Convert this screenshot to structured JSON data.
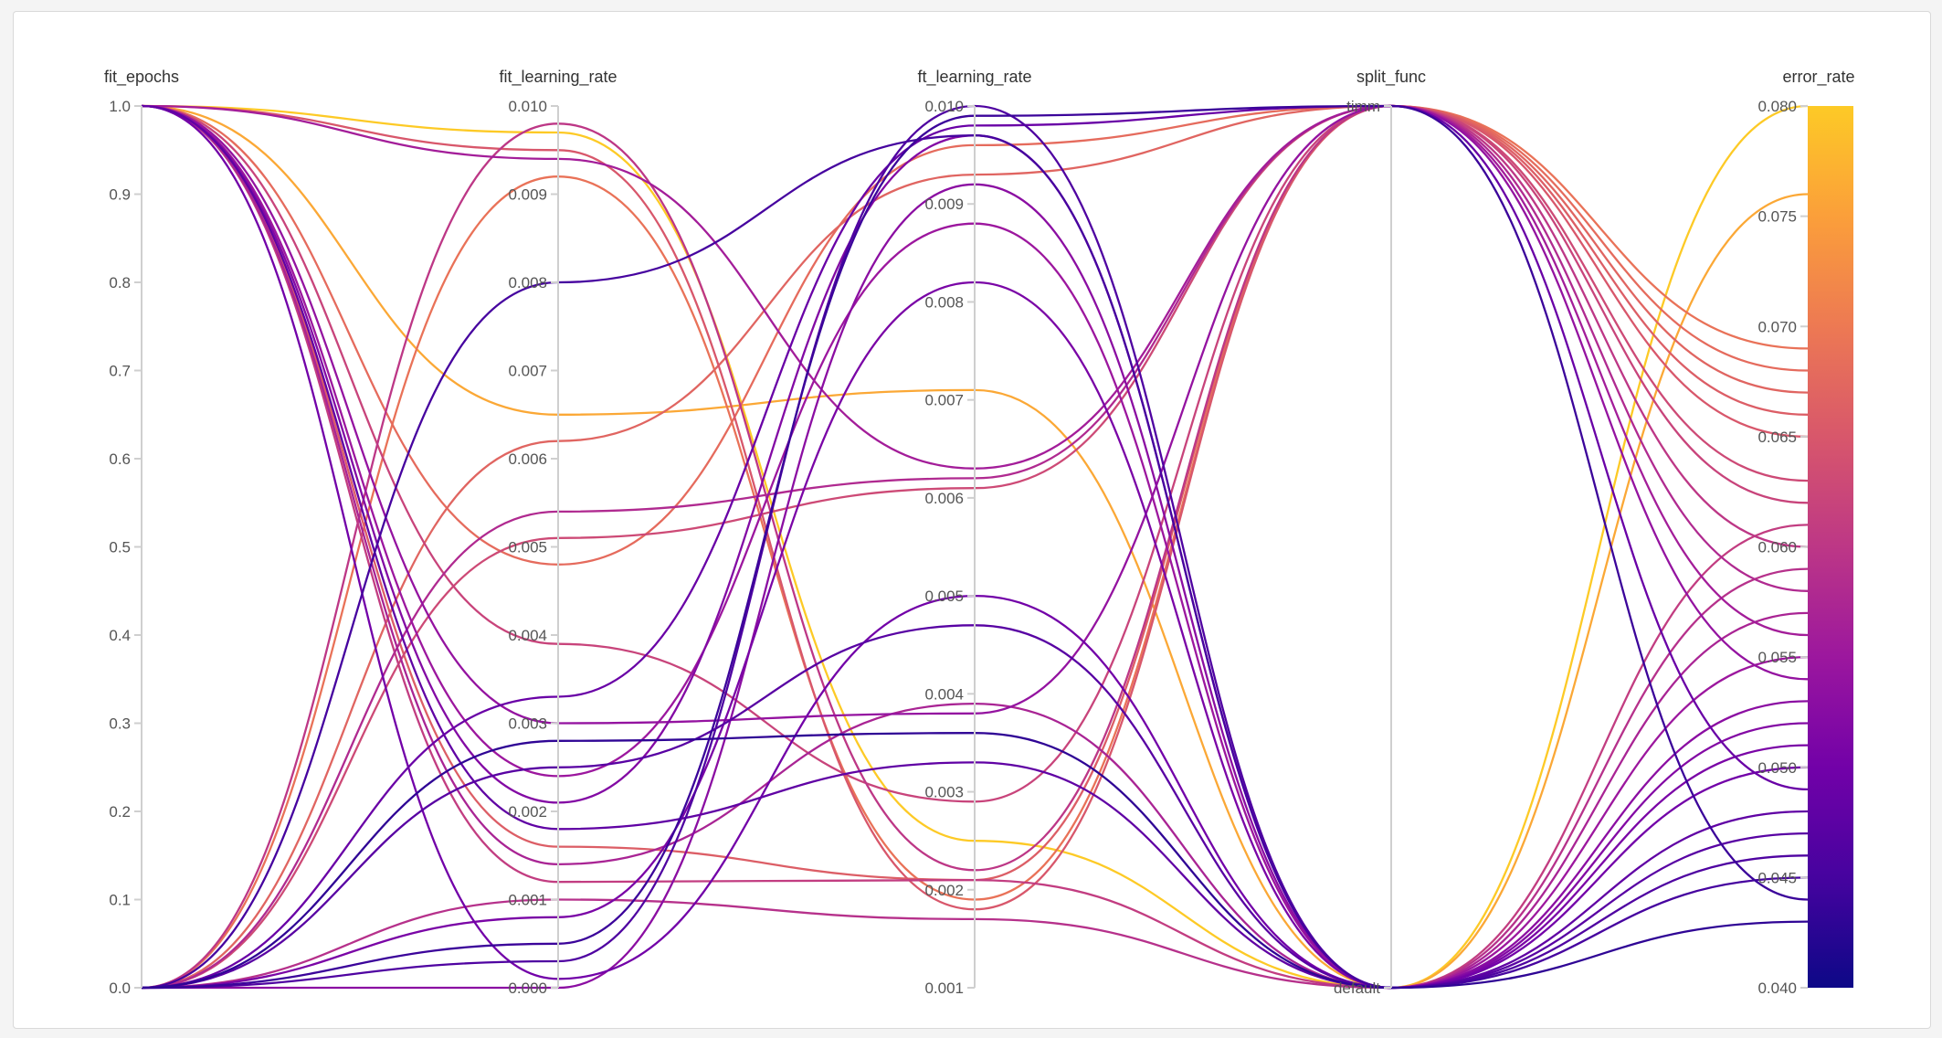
{
  "chart_data": {
    "type": "parallel-coordinates",
    "dimensions": [
      {
        "name": "fit_epochs",
        "kind": "numeric",
        "range": [
          0,
          1
        ],
        "ticks": [
          "0.0",
          "0.1",
          "0.2",
          "0.3",
          "0.4",
          "0.5",
          "0.6",
          "0.7",
          "0.8",
          "0.9",
          "1.0"
        ]
      },
      {
        "name": "fit_learning_rate",
        "kind": "numeric",
        "range": [
          0,
          0.01
        ],
        "ticks": [
          "0.000",
          "0.001",
          "0.002",
          "0.003",
          "0.004",
          "0.005",
          "0.006",
          "0.007",
          "0.008",
          "0.009",
          "0.010"
        ]
      },
      {
        "name": "ft_learning_rate",
        "kind": "numeric",
        "range": [
          0.001,
          0.01
        ],
        "ticks": [
          "0.001",
          "0.002",
          "0.003",
          "0.004",
          "0.005",
          "0.006",
          "0.007",
          "0.008",
          "0.009",
          "0.010"
        ]
      },
      {
        "name": "split_func",
        "kind": "categorical",
        "categories": [
          "default",
          "timm"
        ]
      },
      {
        "name": "error_rate",
        "kind": "numeric",
        "range": [
          0.04,
          0.08
        ],
        "ticks": [
          "0.040",
          "0.045",
          "0.050",
          "0.055",
          "0.060",
          "0.065",
          "0.070",
          "0.075",
          "0.080"
        ]
      }
    ],
    "colorscale": {
      "dimension": "error_rate",
      "range": [
        0.04,
        0.08
      ],
      "stops": [
        "#0d0887",
        "#46039f",
        "#7201a8",
        "#9c179e",
        "#bd3786",
        "#d8576b",
        "#ed7953",
        "#fb9f3a",
        "#fdca26"
      ]
    },
    "runs": [
      {
        "fit_epochs": 1,
        "fit_learning_rate": 0.0097,
        "ft_learning_rate": 0.0025,
        "split_func": "default",
        "error_rate": 0.08
      },
      {
        "fit_epochs": 1,
        "fit_learning_rate": 0.0065,
        "ft_learning_rate": 0.0071,
        "split_func": "default",
        "error_rate": 0.076
      },
      {
        "fit_epochs": 0,
        "fit_learning_rate": 0.0092,
        "ft_learning_rate": 0.0019,
        "split_func": "timm",
        "error_rate": 0.069
      },
      {
        "fit_epochs": 1,
        "fit_learning_rate": 0.0048,
        "ft_learning_rate": 0.0096,
        "split_func": "timm",
        "error_rate": 0.068
      },
      {
        "fit_epochs": 0,
        "fit_learning_rate": 0.0062,
        "ft_learning_rate": 0.0093,
        "split_func": "timm",
        "error_rate": 0.067
      },
      {
        "fit_epochs": 1,
        "fit_learning_rate": 0.0016,
        "ft_learning_rate": 0.0021,
        "split_func": "timm",
        "error_rate": 0.066
      },
      {
        "fit_epochs": 1,
        "fit_learning_rate": 0.0095,
        "ft_learning_rate": 0.0018,
        "split_func": "timm",
        "error_rate": 0.065
      },
      {
        "fit_epochs": 0,
        "fit_learning_rate": 0.0051,
        "ft_learning_rate": 0.0061,
        "split_func": "timm",
        "error_rate": 0.063
      },
      {
        "fit_epochs": 1,
        "fit_learning_rate": 0.0039,
        "ft_learning_rate": 0.0029,
        "split_func": "timm",
        "error_rate": 0.062
      },
      {
        "fit_epochs": 1,
        "fit_learning_rate": 0.0012,
        "ft_learning_rate": 0.0021,
        "split_func": "default",
        "error_rate": 0.061
      },
      {
        "fit_epochs": 0,
        "fit_learning_rate": 0.0098,
        "ft_learning_rate": 0.0022,
        "split_func": "timm",
        "error_rate": 0.06
      },
      {
        "fit_epochs": 0,
        "fit_learning_rate": 0.001,
        "ft_learning_rate": 0.0017,
        "split_func": "default",
        "error_rate": 0.059
      },
      {
        "fit_epochs": 0,
        "fit_learning_rate": 0.0054,
        "ft_learning_rate": 0.0062,
        "split_func": "timm",
        "error_rate": 0.058
      },
      {
        "fit_epochs": 1,
        "fit_learning_rate": 0.0014,
        "ft_learning_rate": 0.0039,
        "split_func": "default",
        "error_rate": 0.057
      },
      {
        "fit_epochs": 1,
        "fit_learning_rate": 0.0094,
        "ft_learning_rate": 0.0063,
        "split_func": "timm",
        "error_rate": 0.056
      },
      {
        "fit_epochs": 1,
        "fit_learning_rate": 0.0024,
        "ft_learning_rate": 0.0088,
        "split_func": "default",
        "error_rate": 0.055
      },
      {
        "fit_epochs": 1,
        "fit_learning_rate": 0.003,
        "ft_learning_rate": 0.0038,
        "split_func": "timm",
        "error_rate": 0.054
      },
      {
        "fit_epochs": 0,
        "fit_learning_rate": 0.0,
        "ft_learning_rate": 0.0092,
        "split_func": "default",
        "error_rate": 0.053
      },
      {
        "fit_epochs": 1,
        "fit_learning_rate": 0.0021,
        "ft_learning_rate": 0.0097,
        "split_func": "default",
        "error_rate": 0.052
      },
      {
        "fit_epochs": 0,
        "fit_learning_rate": 0.0008,
        "ft_learning_rate": 0.0082,
        "split_func": "default",
        "error_rate": 0.051
      },
      {
        "fit_epochs": 1,
        "fit_learning_rate": 0.0001,
        "ft_learning_rate": 0.005,
        "split_func": "default",
        "error_rate": 0.05
      },
      {
        "fit_epochs": 0,
        "fit_learning_rate": 0.0033,
        "ft_learning_rate": 0.0098,
        "split_func": "timm",
        "error_rate": 0.049
      },
      {
        "fit_epochs": 1,
        "fit_learning_rate": 0.0018,
        "ft_learning_rate": 0.0033,
        "split_func": "default",
        "error_rate": 0.048
      },
      {
        "fit_epochs": 0,
        "fit_learning_rate": 0.0025,
        "ft_learning_rate": 0.0047,
        "split_func": "default",
        "error_rate": 0.047
      },
      {
        "fit_epochs": 0,
        "fit_learning_rate": 0.0003,
        "ft_learning_rate": 0.01,
        "split_func": "default",
        "error_rate": 0.046
      },
      {
        "fit_epochs": 0,
        "fit_learning_rate": 0.008,
        "ft_learning_rate": 0.0097,
        "split_func": "default",
        "error_rate": 0.045
      },
      {
        "fit_epochs": 0,
        "fit_learning_rate": 0.0005,
        "ft_learning_rate": 0.0099,
        "split_func": "timm",
        "error_rate": 0.044
      },
      {
        "fit_epochs": 0,
        "fit_learning_rate": 0.0028,
        "ft_learning_rate": 0.0036,
        "split_func": "default",
        "error_rate": 0.043
      }
    ]
  }
}
